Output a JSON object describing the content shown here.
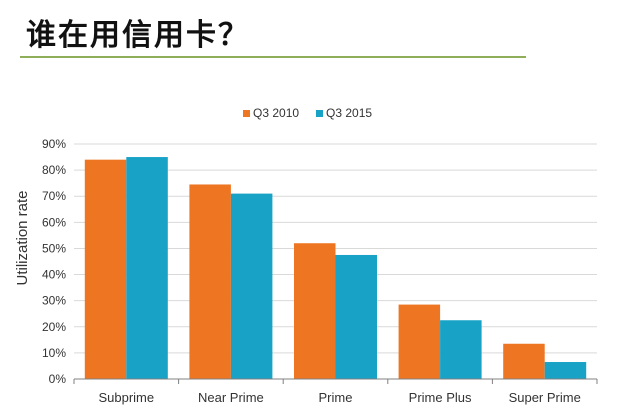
{
  "slide": {
    "title": "谁在用信用卡？"
  },
  "chart_data": {
    "type": "bar",
    "title": "",
    "xlabel": "",
    "ylabel": "Utilization rate",
    "categories": [
      "Subprime",
      "Near Prime",
      "Prime",
      "Prime Plus",
      "Super Prime"
    ],
    "series": [
      {
        "name": "Q3 2010",
        "color": "#ee7623",
        "values": [
          84,
          74.5,
          52,
          28.5,
          13.5
        ]
      },
      {
        "name": "Q3 2015",
        "color": "#17a2c6",
        "values": [
          85,
          71,
          47.5,
          22.5,
          6.5
        ]
      }
    ],
    "ylim": [
      0,
      90
    ],
    "yticks": [
      "0%",
      "10%",
      "20%",
      "30%",
      "40%",
      "50%",
      "60%",
      "70%",
      "80%",
      "90%"
    ],
    "grid": true,
    "legend": "top-center"
  }
}
